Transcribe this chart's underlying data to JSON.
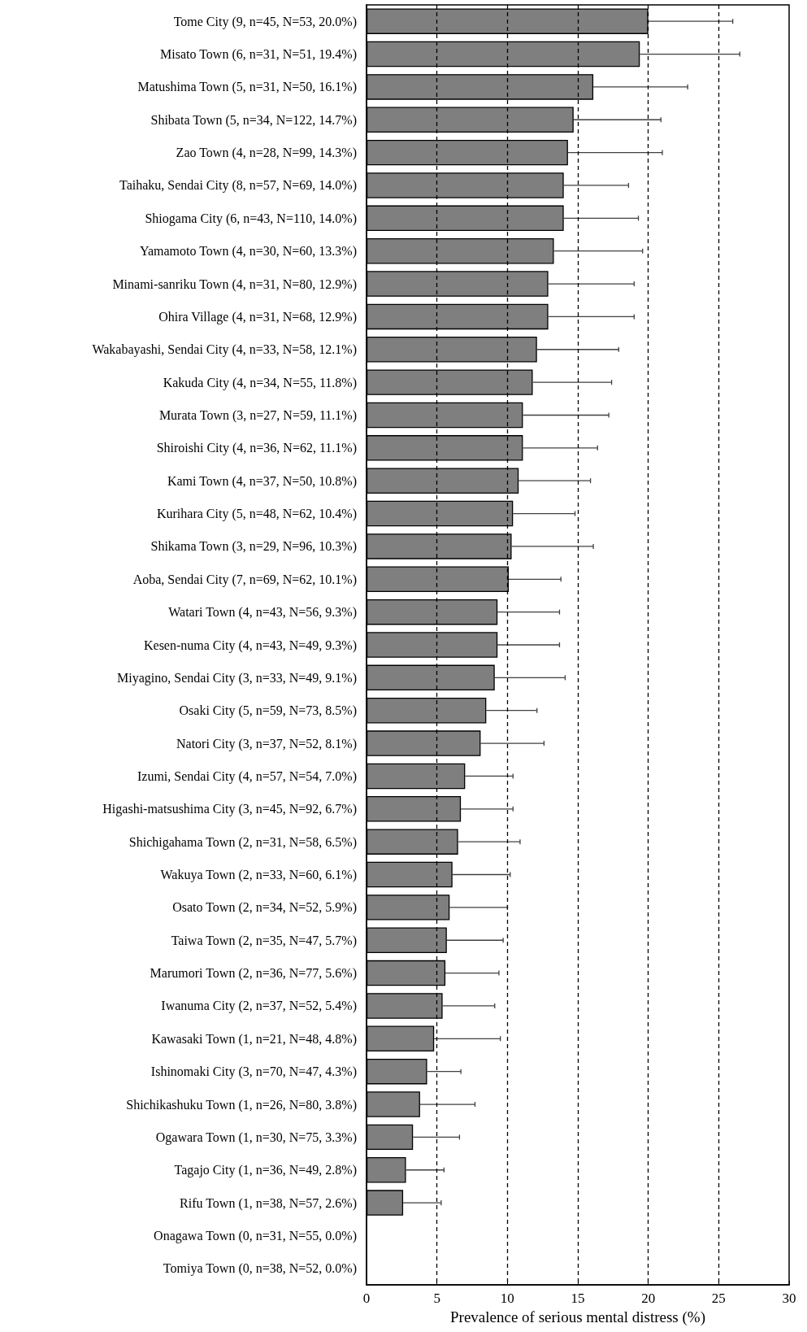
{
  "chart_data": {
    "type": "bar",
    "orientation": "horizontal",
    "xlabel": "Prevalence of serious mental distress (%)",
    "categories": [
      "Tome City (9, n=45, N=53, 20.0%)",
      "Misato Town (6, n=31, N=51, 19.4%)",
      "Matushima Town (5, n=31, N=50, 16.1%)",
      "Shibata Town (5, n=34, N=122, 14.7%)",
      "Zao Town (4, n=28, N=99, 14.3%)",
      "Taihaku, Sendai City (8, n=57, N=69, 14.0%)",
      "Shiogama City (6, n=43, N=110, 14.0%)",
      "Yamamoto Town (4, n=30, N=60, 13.3%)",
      "Minami-sanriku Town (4, n=31, N=80, 12.9%)",
      "Ohira Village (4, n=31, N=68, 12.9%)",
      "Wakabayashi, Sendai City (4, n=33, N=58, 12.1%)",
      "Kakuda City (4, n=34, N=55, 11.8%)",
      "Murata Town (3, n=27, N=59, 11.1%)",
      "Shiroishi City (4, n=36, N=62, 11.1%)",
      "Kami Town (4, n=37, N=50, 10.8%)",
      "Kurihara City (5, n=48, N=62, 10.4%)",
      "Shikama Town (3, n=29, N=96, 10.3%)",
      "Aoba, Sendai City (7, n=69, N=62, 10.1%)",
      "Watari Town (4, n=43, N=56, 9.3%)",
      "Kesen-numa City (4, n=43, N=49, 9.3%)",
      "Miyagino, Sendai City (3, n=33, N=49, 9.1%)",
      "Osaki City (5, n=59, N=73, 8.5%)",
      "Natori City (3, n=37, N=52, 8.1%)",
      "Izumi, Sendai City (4, n=57, N=54, 7.0%)",
      "Higashi-matsushima City (3, n=45, N=92, 6.7%)",
      "Shichigahama Town (2, n=31, N=58, 6.5%)",
      "Wakuya Town (2, n=33, N=60, 6.1%)",
      "Osato Town (2, n=34, N=52, 5.9%)",
      "Taiwa Town (2, n=35, N=47, 5.7%)",
      "Marumori Town (2, n=36, N=77, 5.6%)",
      "Iwanuma City (2, n=37, N=52, 5.4%)",
      "Kawasaki Town (1, n=21, N=48, 4.8%)",
      "Ishinomaki City (3, n=70, N=47, 4.3%)",
      "Shichikashuku Town (1, n=26, N=80, 3.8%)",
      "Ogawara Town (1, n=30, N=75, 3.3%)",
      "Tagajo City (1, n=36, N=49, 2.8%)",
      "Rifu Town (1, n=38, N=57, 2.6%)",
      "Onagawa Town (0, n=31, N=55, 0.0%)",
      "Tomiya Town (0, n=38, N=52, 0.0%)"
    ],
    "series": [
      {
        "color": "#7f7f7f",
        "values": [
          20.0,
          19.4,
          16.1,
          14.7,
          14.3,
          14.0,
          14.0,
          13.3,
          12.9,
          12.9,
          12.1,
          11.8,
          11.1,
          11.1,
          10.8,
          10.4,
          10.3,
          10.1,
          9.3,
          9.3,
          9.1,
          8.5,
          8.1,
          7.0,
          6.7,
          6.5,
          6.1,
          5.9,
          5.7,
          5.6,
          5.4,
          4.8,
          4.3,
          3.8,
          3.3,
          2.8,
          2.6,
          0.0,
          0.0
        ],
        "errors": [
          [
            20.0,
            26.0
          ],
          [
            19.4,
            26.5
          ],
          [
            16.1,
            22.8
          ],
          [
            14.7,
            20.9
          ],
          [
            14.3,
            21.0
          ],
          [
            14.0,
            18.6
          ],
          [
            14.0,
            19.3
          ],
          [
            13.3,
            19.6
          ],
          [
            12.9,
            19.0
          ],
          [
            12.9,
            19.0
          ],
          [
            12.1,
            17.9
          ],
          [
            11.8,
            17.4
          ],
          [
            11.1,
            17.2
          ],
          [
            11.1,
            16.4
          ],
          [
            10.8,
            15.9
          ],
          [
            10.4,
            14.8
          ],
          [
            10.3,
            16.1
          ],
          [
            10.1,
            13.8
          ],
          [
            9.3,
            13.7
          ],
          [
            9.3,
            13.7
          ],
          [
            9.1,
            14.1
          ],
          [
            8.5,
            12.1
          ],
          [
            8.1,
            12.6
          ],
          [
            7.0,
            10.4
          ],
          [
            6.7,
            10.4
          ],
          [
            6.5,
            10.9
          ],
          [
            6.1,
            10.2
          ],
          [
            5.9,
            10.0
          ],
          [
            5.7,
            9.7
          ],
          [
            5.6,
            9.4
          ],
          [
            5.4,
            9.1
          ],
          [
            4.8,
            9.5
          ],
          [
            4.3,
            6.7
          ],
          [
            3.8,
            7.7
          ],
          [
            3.3,
            6.6
          ],
          [
            2.8,
            5.5
          ],
          [
            2.6,
            5.3
          ],
          null,
          null
        ]
      }
    ],
    "xlim": [
      0,
      30
    ],
    "xticks": [
      0,
      5,
      10,
      15,
      20,
      25,
      30
    ],
    "ref_lines": [
      {
        "axis": "x",
        "value": 5,
        "color": "#000000",
        "line_style": "dashed"
      },
      {
        "axis": "x",
        "value": 10,
        "color": "#000000",
        "line_style": "dashed"
      },
      {
        "axis": "x",
        "value": 15,
        "color": "#000000",
        "line_style": "dashed"
      },
      {
        "axis": "x",
        "value": 20,
        "color": "#000000",
        "line_style": "dashed"
      },
      {
        "axis": "x",
        "value": 25,
        "color": "#000000",
        "line_style": "dashed"
      }
    ],
    "grid": false
  }
}
